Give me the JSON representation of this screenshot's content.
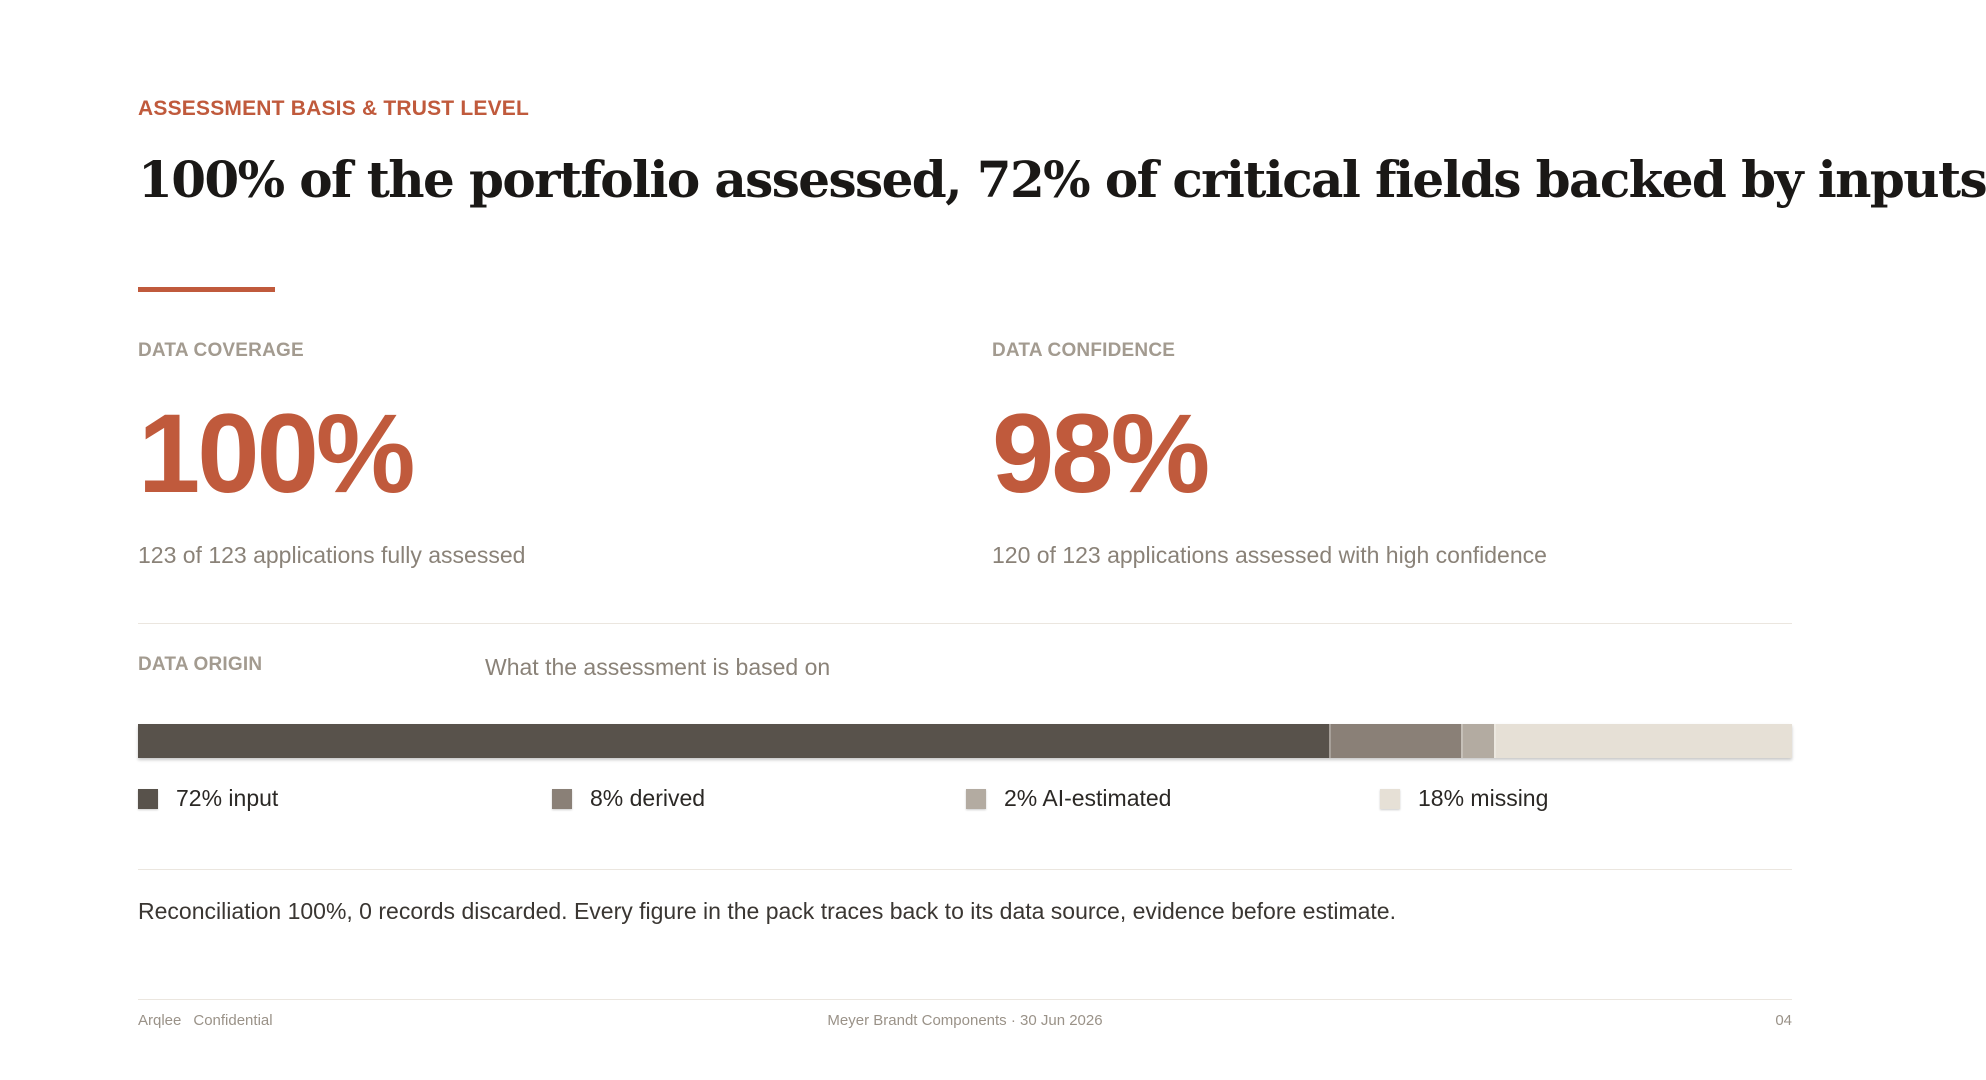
{
  "eyebrow": "ASSESSMENT BASIS & TRUST LEVEL",
  "headline": "100% of the portfolio assessed, 72% of critical fields backed by inputs",
  "colors": {
    "accent": "#c05a3c",
    "input": "#58524b",
    "derived": "#8a8077",
    "ai_estimated": "#b3aba1",
    "missing": "#e6e0d6"
  },
  "coverage": {
    "label": "DATA COVERAGE",
    "value": "100%",
    "sub": "123 of 123 applications fully assessed"
  },
  "confidence": {
    "label": "DATA CONFIDENCE",
    "value": "98%",
    "sub": "120 of 123 applications assessed with high confidence"
  },
  "origin": {
    "label": "DATA ORIGIN",
    "caption": "What the assessment is based on",
    "segments": [
      {
        "key": "input",
        "percent": 72,
        "legend": "72% input"
      },
      {
        "key": "derived",
        "percent": 8,
        "legend": "8% derived"
      },
      {
        "key": "ai_estimated",
        "percent": 2,
        "legend": "2% AI-estimated"
      },
      {
        "key": "missing",
        "percent": 18,
        "legend": "18% missing"
      }
    ]
  },
  "reconciliation": "Reconciliation 100%, 0 records discarded. Every figure in the pack traces back to its data source, evidence before estimate.",
  "footer": {
    "brand": "Arqlee",
    "classification": "Confidential",
    "center": "Meyer Brandt Components · 30 Jun 2026",
    "page": "04"
  }
}
